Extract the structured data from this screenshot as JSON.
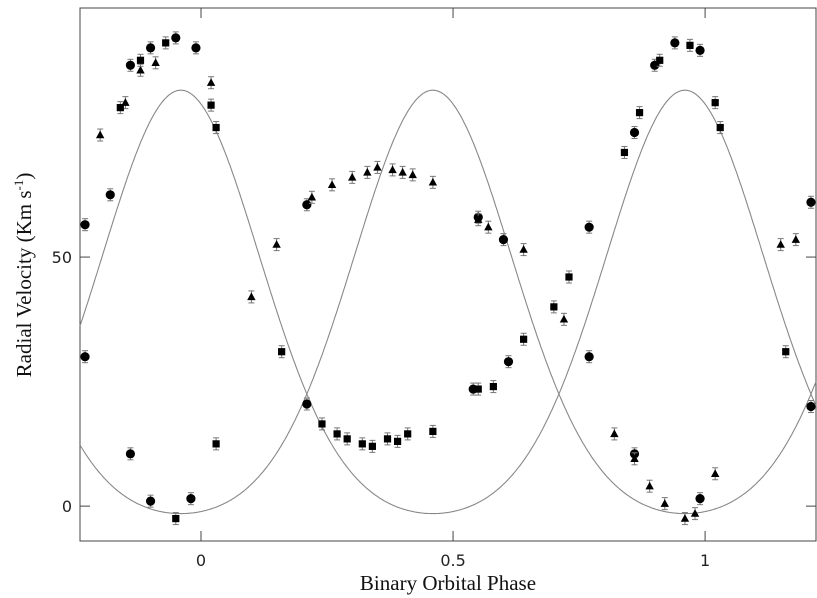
{
  "chart_data": {
    "type": "scatter",
    "title": "",
    "xlabel": "Binary Orbital Phase",
    "ylabel_main": "Radial Velocity (Km s",
    "ylabel_sup": "-1",
    "ylabel_end": ")",
    "xlim": [
      -0.24,
      1.22
    ],
    "ylim": [
      -7,
      100
    ],
    "xticks": [
      {
        "value": 0,
        "label": "0"
      },
      {
        "value": 0.5,
        "label": "0.5"
      },
      {
        "value": 1,
        "label": "1"
      }
    ],
    "yticks": [
      {
        "value": 0,
        "label": "0"
      },
      {
        "value": 50,
        "label": "50"
      }
    ],
    "grid": false,
    "legend": "none",
    "curves": [
      {
        "gamma": 41,
        "amplitude": 42.5,
        "peak_phase": -0.04,
        "sharpness": 0.45
      },
      {
        "gamma": 41,
        "amplitude": 42.5,
        "peak_phase": 0.46,
        "sharpness": 0.45
      }
    ],
    "series": [
      {
        "marker": "circle",
        "x": [
          -0.23,
          -0.18,
          -0.14,
          -0.1,
          -0.05,
          -0.01,
          0.21,
          0.55,
          0.6,
          0.77,
          0.86,
          0.9,
          0.94,
          0.99,
          1.21,
          -0.23,
          -0.14,
          -0.1,
          -0.02,
          0.21,
          0.54,
          0.61,
          0.77,
          0.86,
          0.99,
          1.21
        ],
        "y": [
          56.5,
          62.5,
          88.5,
          92,
          94,
          92,
          60.5,
          58,
          53.5,
          56,
          75,
          88.5,
          93,
          91.5,
          61,
          30,
          10.5,
          1,
          1.5,
          20.5,
          23.5,
          29,
          30,
          10.5,
          1.5,
          20
        ]
      },
      {
        "marker": "triangle",
        "x": [
          -0.2,
          -0.15,
          -0.12,
          -0.09,
          0.02,
          0.1,
          0.15,
          0.22,
          0.26,
          0.3,
          0.33,
          0.35,
          0.38,
          0.4,
          0.42,
          0.46,
          0.55,
          0.57,
          0.64,
          0.72,
          0.82,
          0.86,
          0.89,
          0.92,
          0.96,
          0.98,
          1.02,
          1.15,
          1.18
        ],
        "y": [
          74.5,
          81,
          87.5,
          89,
          85,
          42,
          52.5,
          62,
          64.5,
          66,
          67,
          68,
          67.5,
          67,
          66.5,
          65,
          57.5,
          56,
          51.5,
          37.5,
          14.5,
          9.5,
          4,
          0.5,
          -2.5,
          -1.5,
          6.5,
          52.5,
          53.5
        ]
      },
      {
        "marker": "square",
        "x": [
          -0.16,
          -0.12,
          -0.07,
          0.02,
          0.03,
          0.16,
          0.24,
          0.27,
          0.29,
          0.32,
          0.34,
          0.37,
          0.39,
          0.41,
          0.46,
          0.55,
          0.58,
          0.64,
          0.7,
          0.73,
          0.84,
          0.87,
          0.91,
          0.97,
          1.02,
          1.03,
          1.16,
          -0.05,
          0.03
        ],
        "y": [
          80,
          89.5,
          93,
          80.5,
          76,
          31,
          16.5,
          14.5,
          13.5,
          12.5,
          12,
          13.5,
          13,
          14.5,
          15,
          23.5,
          24,
          33.5,
          40,
          46,
          71,
          79,
          89.5,
          92.5,
          81,
          76,
          31,
          -2.5,
          12.5
        ]
      }
    ]
  }
}
